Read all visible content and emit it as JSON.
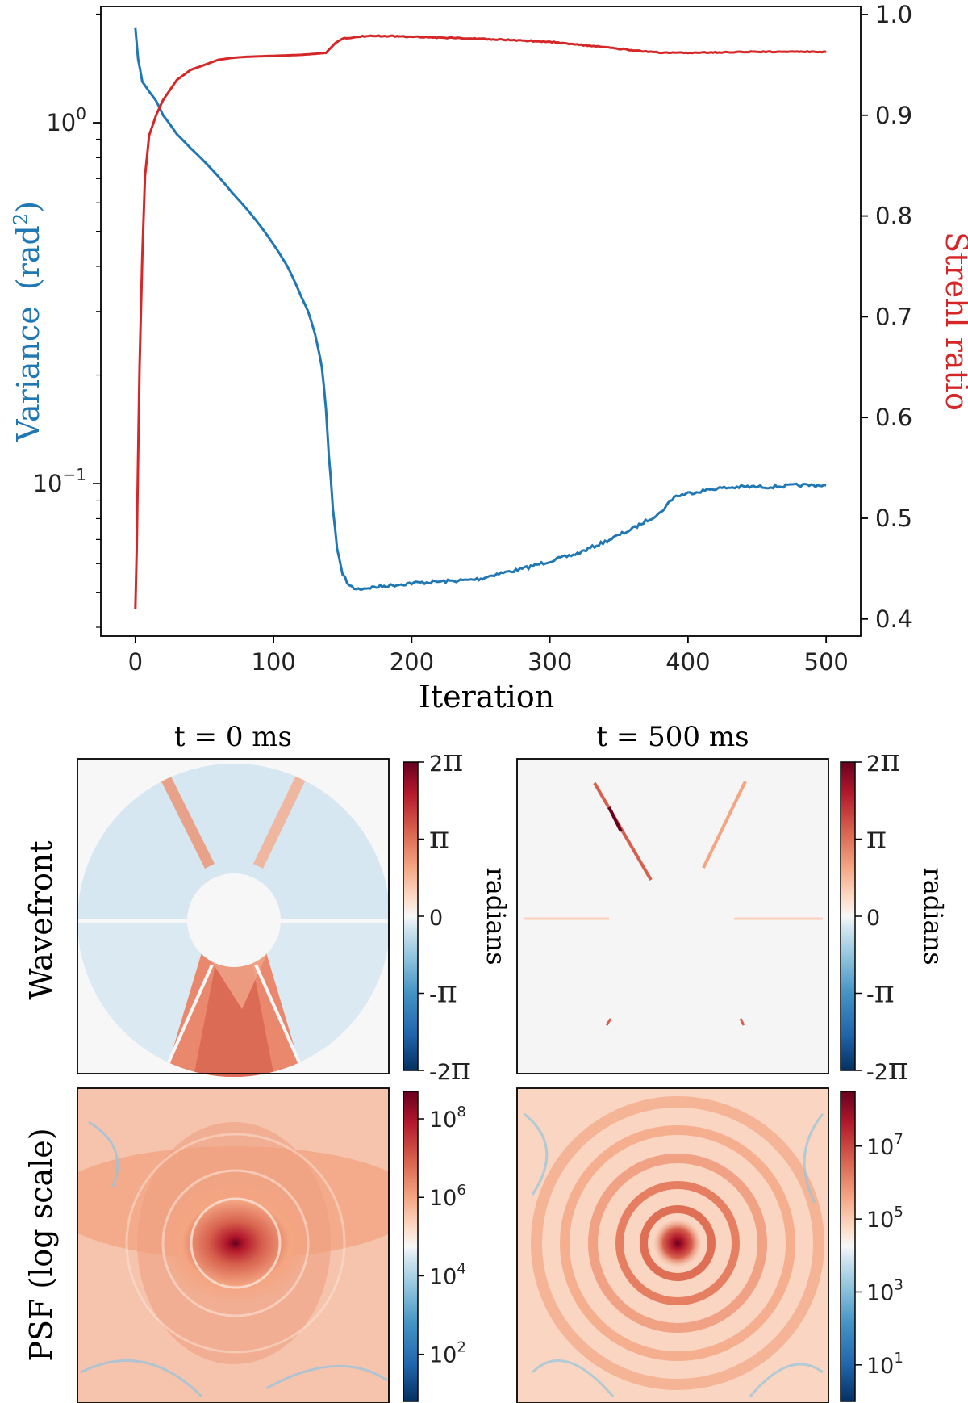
{
  "chart_data": [
    {
      "type": "line",
      "xlabel": "Iteration",
      "ylabel_left": "Variance",
      "ylabel_left_unit_base": "(rad",
      "ylabel_left_unit_exp": "2",
      "ylabel_left_unit_close": ")",
      "ylabel_right": "Strehl ratio",
      "xlim": [
        -25,
        525
      ],
      "x_ticks": [
        0,
        100,
        200,
        300,
        400,
        500
      ],
      "x_tick_labels": [
        "0",
        "100",
        "200",
        "300",
        "400",
        "500"
      ],
      "y_left_scale": "log",
      "ylim_left": [
        0.0378,
        2.1
      ],
      "y_left_ticks": [
        {
          "value": 1.0,
          "base": "10",
          "exp": "0"
        },
        {
          "value": 0.1,
          "base": "10",
          "exp": "−1"
        }
      ],
      "ylim_right": [
        0.383,
        1.008
      ],
      "y_right_ticks": [
        0.4,
        0.5,
        0.6,
        0.7,
        0.8,
        0.9,
        1.0
      ],
      "y_right_tick_labels": [
        "0.4",
        "0.5",
        "0.6",
        "0.7",
        "0.8",
        "0.9",
        "1.0"
      ],
      "series": [
        {
          "name": "Variance",
          "axis": "left",
          "color": "#1f77b4",
          "x": [
            0,
            2,
            5,
            10,
            15,
            20,
            30,
            40,
            50,
            60,
            70,
            80,
            90,
            100,
            110,
            120,
            125,
            130,
            135,
            138,
            140,
            143,
            146,
            150,
            155,
            160,
            170,
            180,
            200,
            220,
            240,
            250,
            260,
            280,
            300,
            320,
            340,
            360,
            380,
            390,
            400,
            420,
            440,
            460,
            480,
            500
          ],
          "y": [
            1.83,
            1.5,
            1.3,
            1.22,
            1.15,
            1.05,
            0.93,
            0.85,
            0.78,
            0.71,
            0.64,
            0.58,
            0.52,
            0.46,
            0.4,
            0.33,
            0.3,
            0.26,
            0.21,
            0.16,
            0.12,
            0.085,
            0.066,
            0.056,
            0.052,
            0.051,
            0.0515,
            0.052,
            0.053,
            0.0535,
            0.054,
            0.0545,
            0.056,
            0.058,
            0.061,
            0.064,
            0.069,
            0.075,
            0.083,
            0.092,
            0.094,
            0.097,
            0.098,
            0.098,
            0.099,
            0.099
          ]
        },
        {
          "name": "Strehl ratio",
          "axis": "right",
          "color": "#d62728",
          "x": [
            0,
            1,
            2,
            3,
            5,
            7,
            10,
            15,
            20,
            25,
            30,
            40,
            50,
            60,
            70,
            80,
            100,
            120,
            130,
            138,
            140,
            145,
            150,
            160,
            170,
            200,
            250,
            300,
            350,
            380,
            400,
            450,
            500
          ],
          "y": [
            0.41,
            0.47,
            0.56,
            0.65,
            0.76,
            0.84,
            0.88,
            0.9,
            0.915,
            0.925,
            0.935,
            0.945,
            0.95,
            0.955,
            0.957,
            0.958,
            0.959,
            0.96,
            0.961,
            0.962,
            0.965,
            0.972,
            0.976,
            0.978,
            0.979,
            0.978,
            0.976,
            0.973,
            0.966,
            0.962,
            0.962,
            0.963,
            0.963
          ]
        }
      ]
    },
    {
      "type": "heatmap",
      "name": "panels",
      "column_titles": [
        "t = 0 ms",
        "t = 500 ms"
      ],
      "row_labels": [
        "Wavefront",
        "PSF (log scale)"
      ],
      "colormap": "RdBu_r",
      "wavefront_colorbar": {
        "label": "radians",
        "range": [
          -6.283,
          6.283
        ],
        "ticks": [
          {
            "coef": "2",
            "sym": "π"
          },
          {
            "coef": "",
            "sym": "π"
          },
          {
            "coef": "0",
            "sym": ""
          },
          {
            "coef": "-",
            "sym": "π"
          },
          {
            "coef": "-2",
            "sym": "π"
          }
        ]
      },
      "psf_colorbars": [
        {
          "range_log10": [
            0.8,
            8.7
          ],
          "ticks": [
            {
              "base": "10",
              "exp": "8"
            },
            {
              "base": "10",
              "exp": "6"
            },
            {
              "base": "10",
              "exp": "4"
            },
            {
              "base": "10",
              "exp": "2"
            }
          ]
        },
        {
          "range_log10": [
            0.0,
            8.5
          ],
          "ticks": [
            {
              "base": "10",
              "exp": "7"
            },
            {
              "base": "10",
              "exp": "5"
            },
            {
              "base": "10",
              "exp": "3"
            },
            {
              "base": "10",
              "exp": "1"
            }
          ]
        }
      ]
    }
  ],
  "colors": {
    "variance": "#1f77b4",
    "strehl": "#d62728",
    "dark_red": "#67001f",
    "dark_blue": "#053061"
  }
}
